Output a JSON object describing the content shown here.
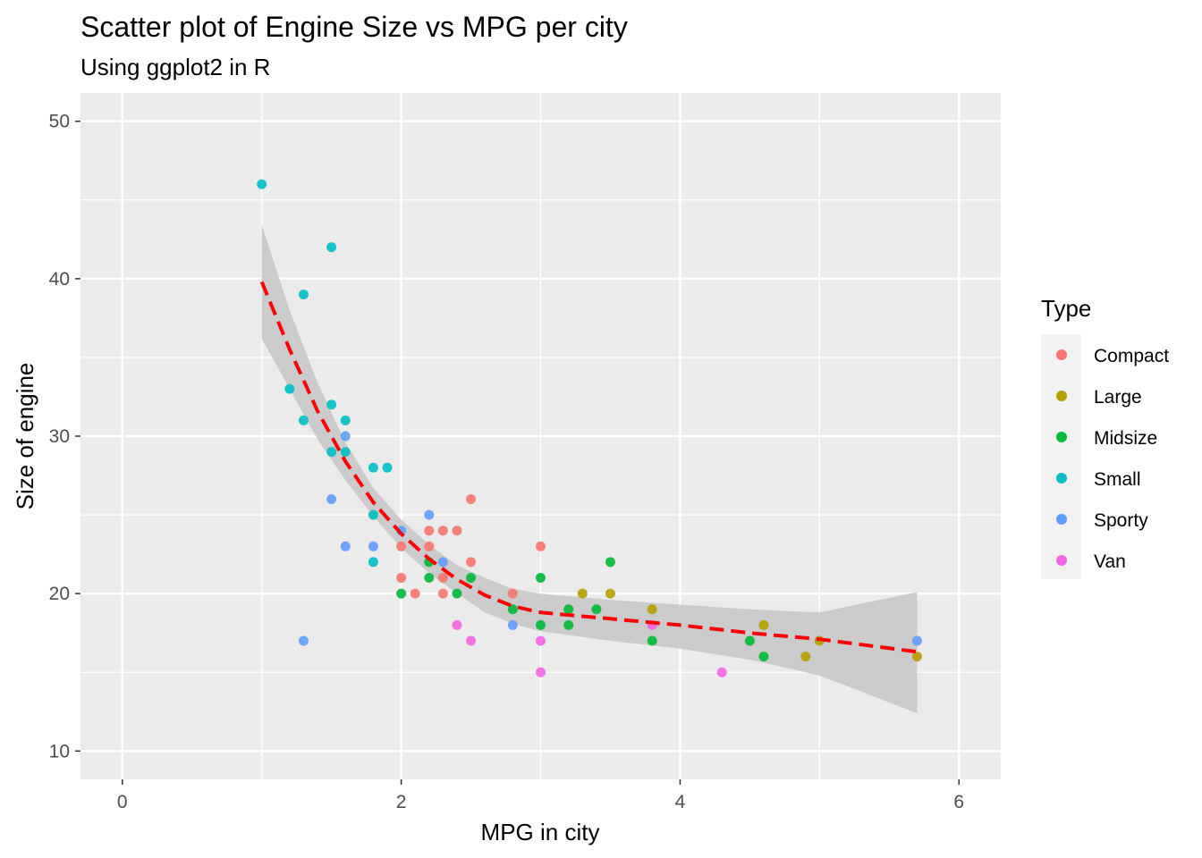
{
  "chart_data": {
    "type": "scatter",
    "title": "Scatter plot of Engine Size vs MPG per city",
    "subtitle": "Using ggplot2 in R",
    "xlabel": "MPG in city",
    "ylabel": "Size of engine",
    "xlim": [
      -0.3,
      6.3
    ],
    "ylim": [
      8.2,
      51.8
    ],
    "x_ticks": [
      0,
      2,
      4,
      6
    ],
    "y_ticks": [
      10,
      20,
      30,
      40,
      50
    ],
    "grid": true,
    "legend": {
      "title": "Type",
      "placement": "right",
      "entries": [
        "Compact",
        "Large",
        "Midsize",
        "Small",
        "Sporty",
        "Van"
      ]
    },
    "colors": {
      "Compact": "#F8766D",
      "Large": "#B79F00",
      "Midsize": "#00BA38",
      "Small": "#00BFC4",
      "Sporty": "#619CFF",
      "Van": "#F564E3",
      "trend_line": "#FF0000",
      "confidence_band": "#C8C8C8",
      "panel_background": "#EBEBEB"
    },
    "series": [
      {
        "name": "Compact",
        "x": [
          2.0,
          2.0,
          2.1,
          2.2,
          2.2,
          2.3,
          2.3,
          2.3,
          2.4,
          2.5,
          2.5,
          2.8,
          3.0
        ],
        "y": [
          23,
          21,
          20,
          24,
          23,
          24,
          21,
          20,
          24,
          26,
          22,
          20,
          23
        ]
      },
      {
        "name": "Large",
        "x": [
          3.3,
          3.5,
          3.8,
          4.6,
          4.9,
          5.0,
          5.7
        ],
        "y": [
          20,
          20,
          19,
          18,
          16,
          17,
          16
        ]
      },
      {
        "name": "Midsize",
        "x": [
          2.0,
          2.2,
          2.2,
          2.4,
          2.5,
          2.8,
          3.0,
          3.0,
          3.2,
          3.2,
          3.4,
          3.5,
          3.8,
          4.5,
          4.6
        ],
        "y": [
          20,
          22,
          21,
          20,
          21,
          19,
          21,
          18,
          19,
          18,
          19,
          22,
          17,
          17,
          16
        ]
      },
      {
        "name": "Small",
        "x": [
          1.0,
          1.2,
          1.3,
          1.3,
          1.5,
          1.5,
          1.5,
          1.6,
          1.6,
          1.8,
          1.8,
          1.8,
          1.9
        ],
        "y": [
          46,
          33,
          39,
          31,
          42,
          32,
          29,
          31,
          29,
          28,
          25,
          22,
          28
        ]
      },
      {
        "name": "Sporty",
        "x": [
          1.3,
          1.5,
          1.6,
          1.6,
          1.8,
          2.0,
          2.2,
          2.3,
          2.8,
          5.7
        ],
        "y": [
          17,
          26,
          30,
          23,
          23,
          24,
          25,
          22,
          18,
          17
        ]
      },
      {
        "name": "Van",
        "x": [
          2.4,
          2.5,
          3.0,
          3.0,
          3.8,
          4.3
        ],
        "y": [
          18,
          17,
          17,
          15,
          18,
          15
        ]
      }
    ],
    "trend": {
      "style": "dashed",
      "x": [
        1.0,
        1.2,
        1.4,
        1.6,
        1.8,
        2.0,
        2.2,
        2.4,
        2.6,
        2.8,
        3.0,
        3.5,
        4.0,
        4.5,
        5.0,
        5.7
      ],
      "y": [
        39.8,
        35.5,
        31.6,
        28.4,
        25.8,
        23.8,
        22.2,
        20.9,
        19.9,
        19.2,
        18.8,
        18.4,
        18.0,
        17.5,
        17.1,
        16.3
      ],
      "lo": [
        36.2,
        33.0,
        29.8,
        27.2,
        24.9,
        22.9,
        21.3,
        20.0,
        18.8,
        18.1,
        17.6,
        17.0,
        16.5,
        15.8,
        14.8,
        12.4
      ],
      "hi": [
        43.4,
        38.0,
        33.4,
        29.6,
        26.7,
        24.7,
        23.1,
        21.8,
        21.0,
        20.3,
        20.0,
        19.6,
        19.3,
        19.0,
        18.8,
        20.1
      ]
    }
  }
}
